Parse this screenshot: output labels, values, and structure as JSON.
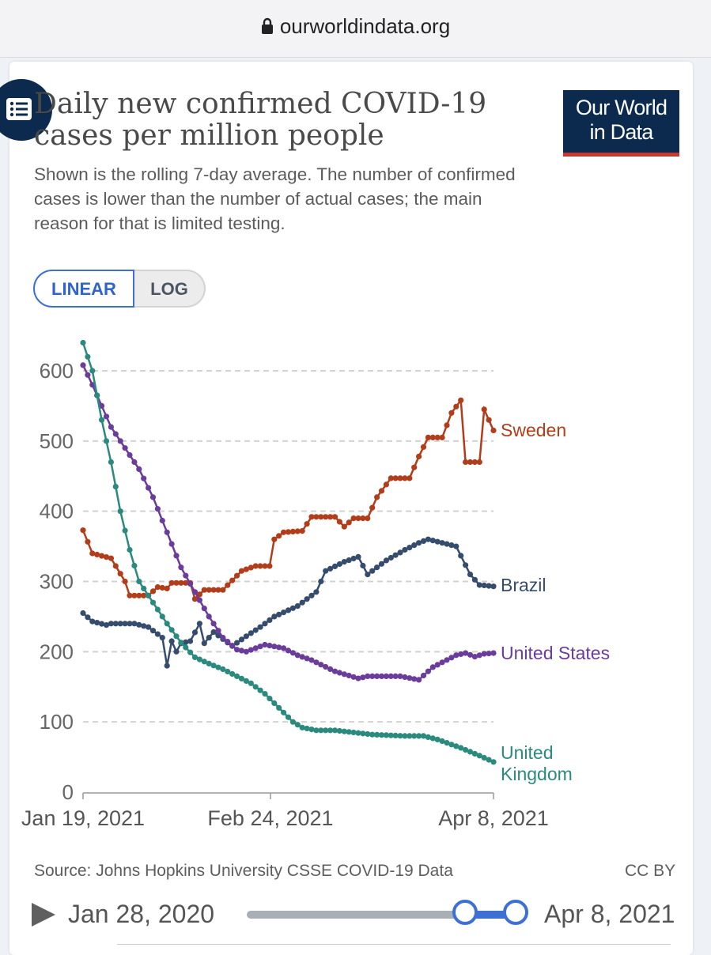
{
  "browser": {
    "url": "ourworldindata.org"
  },
  "header": {
    "title": "Daily new confirmed COVID-19 cases per million people",
    "subtitle": "Shown is the rolling 7-day average. The number of confirmed cases is lower than the number of actual cases; the main reason for that is limited testing.",
    "logo_line1": "Our World",
    "logo_line2": "in Data",
    "menu_icon": "list-icon"
  },
  "scale_toggle": {
    "linear": "LINEAR",
    "log": "LOG",
    "selected": "LINEAR"
  },
  "footer": {
    "source": "Source: Johns Hopkins University CSSE COVID-19 Data",
    "license": "CC BY"
  },
  "timeline": {
    "start_label": "Jan 28, 2020",
    "end_label": "Apr 8, 2021",
    "play_icon": "play-icon"
  },
  "colors": {
    "sweden": "#b13d1a",
    "brazil": "#364c6c",
    "us": "#6a3d9a",
    "uk": "#2b8a7e",
    "accent": "#3d6fd4",
    "brand": "#0b2a4e"
  },
  "chart_data": {
    "type": "line",
    "title": "Daily new confirmed COVID-19 cases per million people",
    "x_start": "Jan 19, 2021",
    "x_end": "Apr 8, 2021",
    "x_ticks": [
      "Jan 19, 2021",
      "Feb 24, 2021",
      "Apr 8, 2021"
    ],
    "y_ticks": [
      0,
      100,
      200,
      300,
      400,
      500,
      600
    ],
    "ylim": [
      0,
      650
    ],
    "grid": true,
    "series": [
      {
        "name": "Sweden",
        "color": "#b13d1a",
        "points": [
          [
            "2021-01-19",
            373
          ],
          [
            "2021-01-21",
            340
          ],
          [
            "2021-01-25",
            333
          ],
          [
            "2021-01-28",
            300
          ],
          [
            "2021-01-29",
            280
          ],
          [
            "2021-02-02",
            280
          ],
          [
            "2021-02-04",
            292
          ],
          [
            "2021-02-06",
            290
          ],
          [
            "2021-02-07",
            298
          ],
          [
            "2021-02-11",
            298
          ],
          [
            "2021-02-12",
            275
          ],
          [
            "2021-02-14",
            288
          ],
          [
            "2021-02-18",
            288
          ],
          [
            "2021-02-22",
            315
          ],
          [
            "2021-02-25",
            322
          ],
          [
            "2021-02-28",
            322
          ],
          [
            "2021-03-01",
            360
          ],
          [
            "2021-03-03",
            370
          ],
          [
            "2021-03-07",
            372
          ],
          [
            "2021-03-09",
            392
          ],
          [
            "2021-03-14",
            392
          ],
          [
            "2021-03-16",
            378
          ],
          [
            "2021-03-18",
            390
          ],
          [
            "2021-03-21",
            390
          ],
          [
            "2021-03-23",
            420
          ],
          [
            "2021-03-26",
            447
          ],
          [
            "2021-03-30",
            447
          ],
          [
            "2021-04-01",
            478
          ],
          [
            "2021-04-03",
            505
          ],
          [
            "2021-04-06",
            505
          ],
          [
            "2021-04-08",
            540
          ],
          [
            "2021-04-10",
            558
          ],
          [
            "2021-04-11",
            470
          ],
          [
            "2021-04-14",
            470
          ],
          [
            "2021-04-15",
            545
          ],
          [
            "2021-04-17",
            515
          ]
        ]
      },
      {
        "name": "Brazil",
        "color": "#364c6c",
        "points": [
          [
            "2021-01-19",
            255
          ],
          [
            "2021-01-21",
            243
          ],
          [
            "2021-01-24",
            238
          ],
          [
            "2021-01-25",
            240
          ],
          [
            "2021-01-30",
            240
          ],
          [
            "2021-02-02",
            235
          ],
          [
            "2021-02-05",
            220
          ],
          [
            "2021-02-06",
            180
          ],
          [
            "2021-02-07",
            215
          ],
          [
            "2021-02-08",
            200
          ],
          [
            "2021-02-09",
            212
          ],
          [
            "2021-02-11",
            215
          ],
          [
            "2021-02-13",
            240
          ],
          [
            "2021-02-14",
            212
          ],
          [
            "2021-02-16",
            228
          ],
          [
            "2021-02-18",
            218
          ],
          [
            "2021-02-20",
            208
          ],
          [
            "2021-02-23",
            222
          ],
          [
            "2021-02-26",
            235
          ],
          [
            "2021-03-01",
            250
          ],
          [
            "2021-03-06",
            265
          ],
          [
            "2021-03-10",
            285
          ],
          [
            "2021-03-12",
            315
          ],
          [
            "2021-03-16",
            328
          ],
          [
            "2021-03-19",
            335
          ],
          [
            "2021-03-21",
            310
          ],
          [
            "2021-03-25",
            330
          ],
          [
            "2021-03-29",
            345
          ],
          [
            "2021-04-01",
            355
          ],
          [
            "2021-04-03",
            360
          ],
          [
            "2021-04-06",
            355
          ],
          [
            "2021-04-09",
            350
          ],
          [
            "2021-04-12",
            310
          ],
          [
            "2021-04-14",
            295
          ],
          [
            "2021-04-17",
            293
          ]
        ]
      },
      {
        "name": "United States",
        "color": "#6a3d9a",
        "points": [
          [
            "2021-01-19",
            608
          ],
          [
            "2021-01-21",
            580
          ],
          [
            "2021-01-23",
            550
          ],
          [
            "2021-01-25",
            520
          ],
          [
            "2021-01-28",
            490
          ],
          [
            "2021-01-31",
            460
          ],
          [
            "2021-02-03",
            420
          ],
          [
            "2021-02-06",
            370
          ],
          [
            "2021-02-09",
            320
          ],
          [
            "2021-02-12",
            285
          ],
          [
            "2021-02-15",
            250
          ],
          [
            "2021-02-18",
            220
          ],
          [
            "2021-02-21",
            203
          ],
          [
            "2021-02-23",
            200
          ],
          [
            "2021-02-27",
            210
          ],
          [
            "2021-03-03",
            205
          ],
          [
            "2021-03-06",
            195
          ],
          [
            "2021-03-09",
            188
          ],
          [
            "2021-03-14",
            172
          ],
          [
            "2021-03-19",
            162
          ],
          [
            "2021-03-21",
            165
          ],
          [
            "2021-03-28",
            165
          ],
          [
            "2021-04-01",
            160
          ],
          [
            "2021-04-04",
            178
          ],
          [
            "2021-04-09",
            195
          ],
          [
            "2021-04-11",
            198
          ],
          [
            "2021-04-13",
            193
          ],
          [
            "2021-04-15",
            197
          ],
          [
            "2021-04-17",
            198
          ]
        ]
      },
      {
        "name": "United Kingdom",
        "color": "#2b8a7e",
        "points": [
          [
            "2021-01-19",
            640
          ],
          [
            "2021-01-21",
            600
          ],
          [
            "2021-01-23",
            530
          ],
          [
            "2021-01-25",
            470
          ],
          [
            "2021-01-27",
            400
          ],
          [
            "2021-01-29",
            345
          ],
          [
            "2021-01-31",
            300
          ],
          [
            "2021-02-03",
            270
          ],
          [
            "2021-02-06",
            240
          ],
          [
            "2021-02-09",
            213
          ],
          [
            "2021-02-12",
            192
          ],
          [
            "2021-02-15",
            183
          ],
          [
            "2021-02-18",
            175
          ],
          [
            "2021-02-21",
            165
          ],
          [
            "2021-02-24",
            155
          ],
          [
            "2021-02-27",
            140
          ],
          [
            "2021-03-02",
            120
          ],
          [
            "2021-03-05",
            100
          ],
          [
            "2021-03-07",
            92
          ],
          [
            "2021-03-10",
            88
          ],
          [
            "2021-03-14",
            88
          ],
          [
            "2021-03-18",
            85
          ],
          [
            "2021-03-22",
            82
          ],
          [
            "2021-03-29",
            80
          ],
          [
            "2021-04-02",
            80
          ],
          [
            "2021-04-05",
            75
          ],
          [
            "2021-04-10",
            63
          ],
          [
            "2021-04-14",
            52
          ],
          [
            "2021-04-17",
            43
          ]
        ]
      }
    ]
  }
}
